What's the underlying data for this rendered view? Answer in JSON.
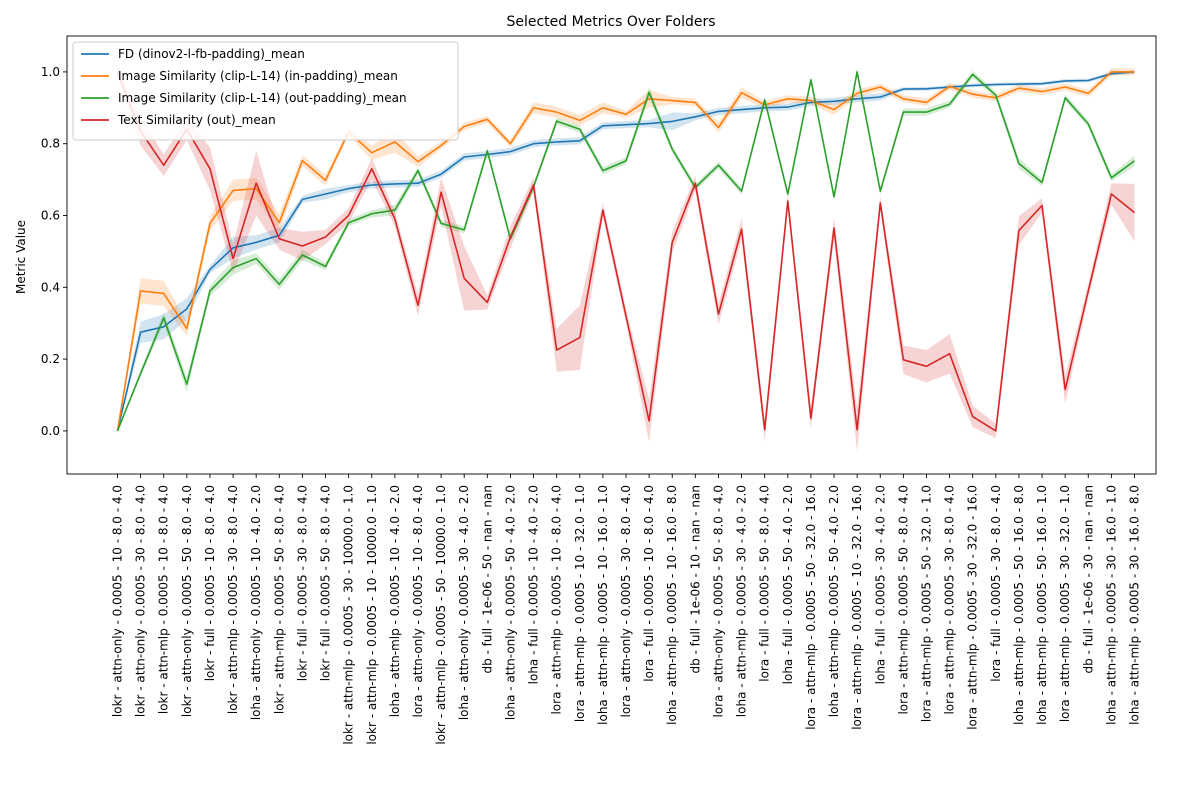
{
  "chart_data": {
    "type": "line",
    "title": "Selected Metrics Over Folders",
    "xlabel": "",
    "ylabel": "Metric Value",
    "ylim": [
      -0.12,
      1.1
    ],
    "yticks": [
      0.0,
      0.2,
      0.4,
      0.6,
      0.8,
      1.0
    ],
    "ytick_labels": [
      "0.0",
      "0.2",
      "0.4",
      "0.6",
      "0.8",
      "1.0"
    ],
    "grid": false,
    "legend_position": "top-left",
    "categories": [
      "lokr - attn-only - 0.0005 - 10 - 8.0 - 4.0",
      "lokr - attn-only - 0.0005 - 30 - 8.0 - 4.0",
      "lokr - attn-mlp - 0.0005 - 10 - 8.0 - 4.0",
      "lokr - attn-only - 0.0005 - 50 - 8.0 - 4.0",
      "lokr - full - 0.0005 - 10 - 8.0 - 4.0",
      "lokr - attn-mlp - 0.0005 - 30 - 8.0 - 4.0",
      "loha - attn-only - 0.0005 - 10 - 4.0 - 2.0",
      "lokr - attn-mlp - 0.0005 - 50 - 8.0 - 4.0",
      "lokr - full - 0.0005 - 30 - 8.0 - 4.0",
      "lokr - full - 0.0005 - 50 - 8.0 - 4.0",
      "lokr - attn-mlp - 0.0005 - 30 - 10000.0 - 1.0",
      "lokr - attn-mlp - 0.0005 - 10 - 10000.0 - 1.0",
      "loha - attn-mlp - 0.0005 - 10 - 4.0 - 2.0",
      "lora - attn-only - 0.0005 - 10 - 8.0 - 4.0",
      "lokr - attn-mlp - 0.0005 - 50 - 10000.0 - 1.0",
      "loha - attn-only - 0.0005 - 30 - 4.0 - 2.0",
      "db - full - 1e-06 - 50 - nan - nan",
      "loha - attn-only - 0.0005 - 50 - 4.0 - 2.0",
      "loha - full - 0.0005 - 10 - 4.0 - 2.0",
      "lora - attn-mlp - 0.0005 - 10 - 8.0 - 4.0",
      "lora - attn-mlp - 0.0005 - 10 - 32.0 - 1.0",
      "loha - attn-mlp - 0.0005 - 10 - 16.0 - 1.0",
      "lora - attn-only - 0.0005 - 30 - 8.0 - 4.0",
      "lora - full - 0.0005 - 10 - 8.0 - 4.0",
      "loha - attn-mlp - 0.0005 - 10 - 16.0 - 8.0",
      "db - full - 1e-06 - 10 - nan - nan",
      "lora - attn-only - 0.0005 - 50 - 8.0 - 4.0",
      "loha - attn-mlp - 0.0005 - 30 - 4.0 - 2.0",
      "lora - full - 0.0005 - 50 - 8.0 - 4.0",
      "loha - full - 0.0005 - 50 - 4.0 - 2.0",
      "lora - attn-mlp - 0.0005 - 50 - 32.0 - 16.0",
      "loha - attn-mlp - 0.0005 - 50 - 4.0 - 2.0",
      "lora - attn-mlp - 0.0005 - 10 - 32.0 - 16.0",
      "loha - full - 0.0005 - 30 - 4.0 - 2.0",
      "lora - attn-mlp - 0.0005 - 50 - 8.0 - 4.0",
      "lora - attn-mlp - 0.0005 - 50 - 32.0 - 1.0",
      "lora - attn-mlp - 0.0005 - 30 - 8.0 - 4.0",
      "lora - attn-mlp - 0.0005 - 30 - 32.0 - 16.0",
      "lora - full - 0.0005 - 30 - 8.0 - 4.0",
      "loha - attn-mlp - 0.0005 - 50 - 16.0 - 8.0",
      "loha - attn-mlp - 0.0005 - 50 - 16.0 - 1.0",
      "lora - attn-mlp - 0.0005 - 30 - 32.0 - 1.0",
      "db - full - 1e-06 - 30 - nan - nan",
      "loha - attn-mlp - 0.0005 - 30 - 16.0 - 1.0",
      "loha - attn-mlp - 0.0005 - 30 - 16.0 - 8.0"
    ],
    "series": [
      {
        "name": "FD (dinov2-l-fb-padding)_mean",
        "color": "#1f77b4",
        "values": [
          0.0,
          0.275,
          0.29,
          0.34,
          0.45,
          0.51,
          0.525,
          0.545,
          0.645,
          0.66,
          0.675,
          0.685,
          0.688,
          0.69,
          0.715,
          0.763,
          0.77,
          0.778,
          0.8,
          0.805,
          0.808,
          0.85,
          0.853,
          0.856,
          0.862,
          0.875,
          0.89,
          0.895,
          0.9,
          0.902,
          0.915,
          0.918,
          0.925,
          0.93,
          0.952,
          0.953,
          0.958,
          0.962,
          0.965,
          0.966,
          0.967,
          0.975,
          0.976,
          0.995,
          1.0
        ],
        "band": [
          0.0,
          0.03,
          0.035,
          0.03,
          0.01,
          0.03,
          0.02,
          0.02,
          0.01,
          0.015,
          0.01,
          0.01,
          0.01,
          0.01,
          0.01,
          0.01,
          0.01,
          0.01,
          0.01,
          0.01,
          0.01,
          0.01,
          0.01,
          0.01,
          0.025,
          0.01,
          0.01,
          0.01,
          0.01,
          0.01,
          0.01,
          0.01,
          0.01,
          0.01,
          0.005,
          0.005,
          0.005,
          0.005,
          0.005,
          0.005,
          0.005,
          0.005,
          0.005,
          0.005,
          0.005
        ]
      },
      {
        "name": "Image Similarity (clip-L-14) (in-padding)_mean",
        "color": "#ff7f0e",
        "values": [
          0.0,
          0.39,
          0.383,
          0.285,
          0.578,
          0.67,
          0.675,
          0.58,
          0.753,
          0.698,
          0.833,
          0.775,
          0.805,
          0.75,
          0.795,
          0.848,
          0.868,
          0.8,
          0.9,
          0.888,
          0.865,
          0.9,
          0.882,
          0.925,
          0.92,
          0.915,
          0.845,
          0.942,
          0.908,
          0.925,
          0.92,
          0.895,
          0.94,
          0.958,
          0.925,
          0.915,
          0.96,
          0.938,
          0.928,
          0.955,
          0.945,
          0.958,
          0.94,
          1.0,
          1.0
        ],
        "band": [
          0.0,
          0.035,
          0.035,
          0.02,
          0.02,
          0.03,
          0.03,
          0.025,
          0.015,
          0.015,
          0.01,
          0.02,
          0.03,
          0.015,
          0.01,
          0.01,
          0.01,
          0.01,
          0.015,
          0.015,
          0.015,
          0.015,
          0.01,
          0.025,
          0.01,
          0.01,
          0.015,
          0.015,
          0.01,
          0.01,
          0.01,
          0.015,
          0.01,
          0.01,
          0.01,
          0.01,
          0.01,
          0.01,
          0.01,
          0.01,
          0.01,
          0.01,
          0.01,
          0.01,
          0.01
        ]
      },
      {
        "name": "Image Similarity (clip-L-14) (out-padding)_mean",
        "color": "#2ca02c",
        "values": [
          0.0,
          0.16,
          0.315,
          0.13,
          0.39,
          0.455,
          0.48,
          0.408,
          0.49,
          0.458,
          0.58,
          0.605,
          0.615,
          0.725,
          0.578,
          0.56,
          0.78,
          0.535,
          0.68,
          0.863,
          0.84,
          0.725,
          0.752,
          0.943,
          0.785,
          0.678,
          0.74,
          0.668,
          0.922,
          0.66,
          0.978,
          0.652,
          1.0,
          0.668,
          0.888,
          0.888,
          0.91,
          0.993,
          0.935,
          0.745,
          0.692,
          0.928,
          0.855,
          0.705,
          0.752
        ],
        "band": [
          0.0,
          0.01,
          0.015,
          0.02,
          0.015,
          0.02,
          0.015,
          0.015,
          0.015,
          0.01,
          0.01,
          0.01,
          0.015,
          0.01,
          0.01,
          0.01,
          0.01,
          0.01,
          0.01,
          0.01,
          0.01,
          0.01,
          0.01,
          0.015,
          0.01,
          0.01,
          0.01,
          0.01,
          0.01,
          0.01,
          0.01,
          0.01,
          0.01,
          0.01,
          0.01,
          0.01,
          0.01,
          0.01,
          0.01,
          0.015,
          0.01,
          0.01,
          0.01,
          0.01,
          0.015
        ]
      },
      {
        "name": "Text Similarity (out)_mean",
        "color": "#d62728",
        "values": [
          1.0,
          0.835,
          0.74,
          0.84,
          0.73,
          0.48,
          0.69,
          0.535,
          0.515,
          0.54,
          0.6,
          0.73,
          0.59,
          0.35,
          0.665,
          0.425,
          0.358,
          0.54,
          0.685,
          0.225,
          0.26,
          0.615,
          0.32,
          0.028,
          0.525,
          0.69,
          0.325,
          0.562,
          0.003,
          0.64,
          0.035,
          0.565,
          0.003,
          0.635,
          0.198,
          0.18,
          0.215,
          0.04,
          0.0,
          0.558,
          0.628,
          0.115,
          0.39,
          0.66,
          0.608
        ],
        "band": [
          0.02,
          0.04,
          0.03,
          0.03,
          0.06,
          0.04,
          0.09,
          0.03,
          0.04,
          0.02,
          0.02,
          0.03,
          0.02,
          0.03,
          0.04,
          0.09,
          0.02,
          0.03,
          0.02,
          0.06,
          0.09,
          0.02,
          0.02,
          0.06,
          0.03,
          0.02,
          0.03,
          0.03,
          0.03,
          0.02,
          0.03,
          0.03,
          0.06,
          0.02,
          0.04,
          0.045,
          0.055,
          0.03,
          0.02,
          0.04,
          0.02,
          0.04,
          0.02,
          0.03,
          0.08
        ]
      }
    ]
  }
}
